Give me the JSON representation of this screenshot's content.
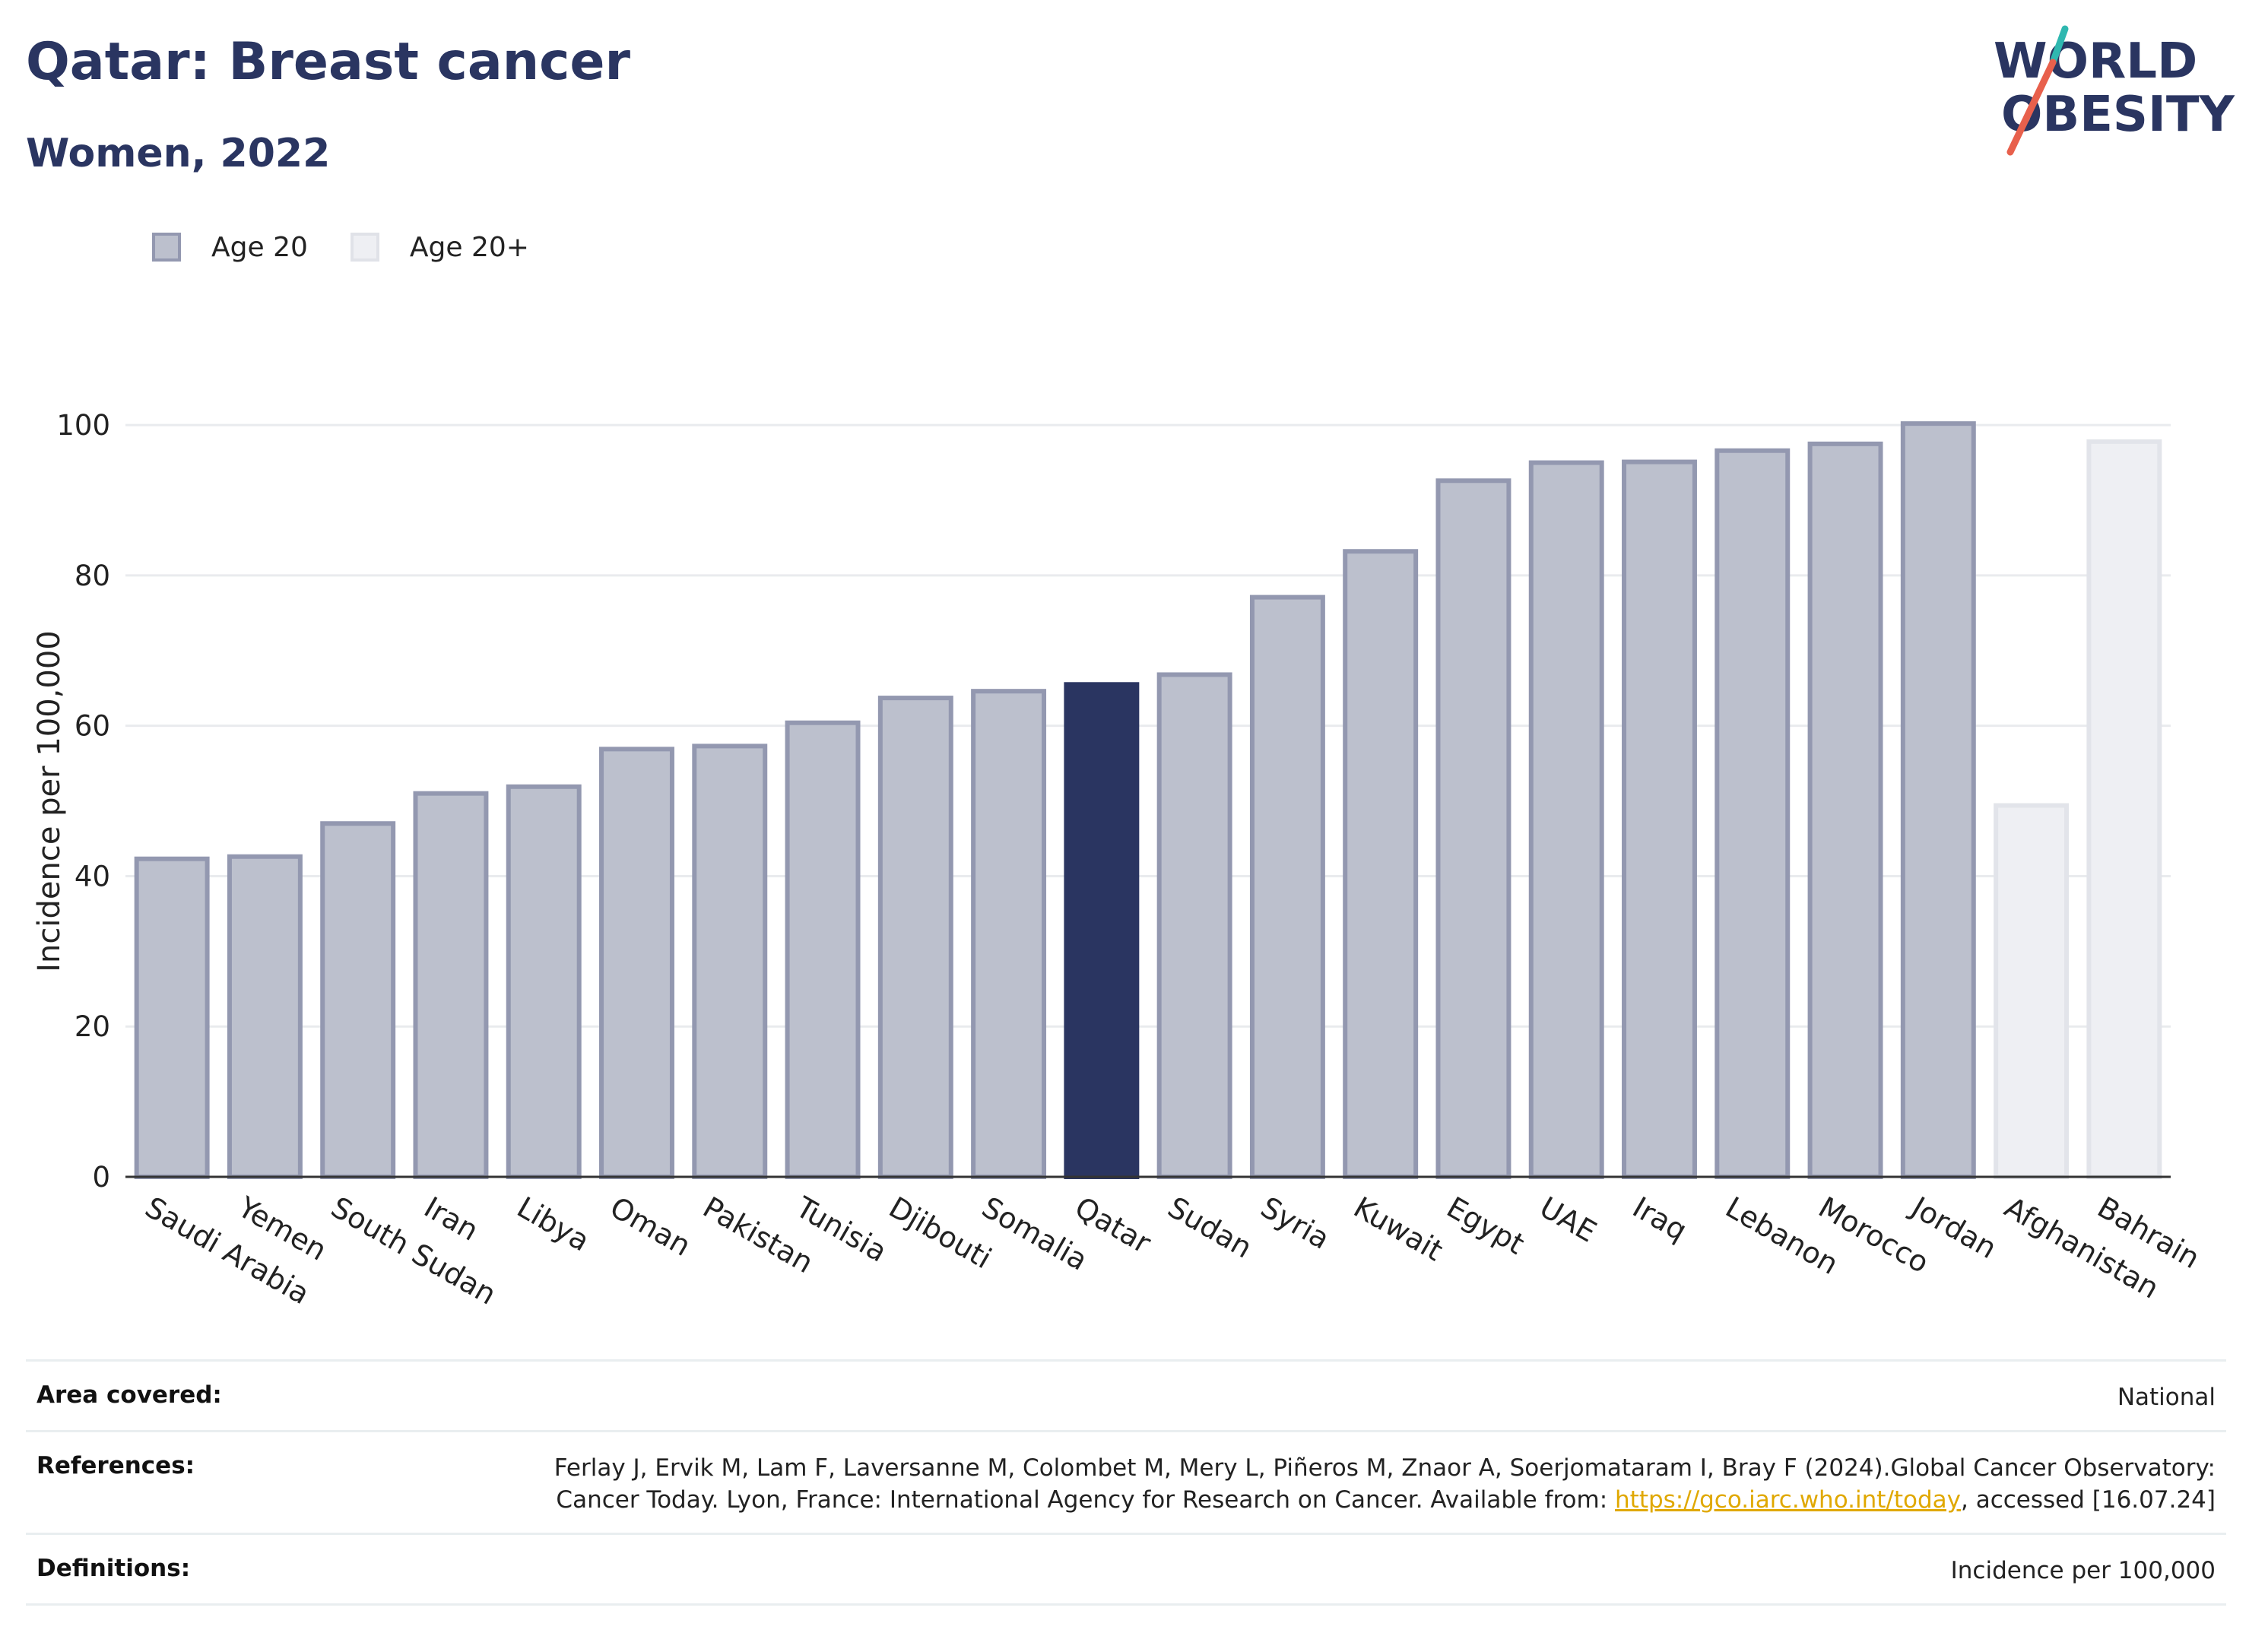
{
  "title": "Qatar: Breast cancer",
  "subtitle": "Women, 2022",
  "logo": {
    "line1": "WORLD",
    "line2": "OBESITY"
  },
  "legend": [
    {
      "label": "Age 20",
      "color": "#bcc0cd",
      "border": "#9398b0"
    },
    {
      "label": "Age 20+",
      "color": "#eeeff3",
      "border": "#e0e2e8"
    }
  ],
  "colors": {
    "highlight": "#2a3561",
    "age20": "#bcc0cd",
    "age20_border": "#9398b0",
    "age20plus": "#eeeff3",
    "age20plus_border": "#e2e4ea",
    "grid": "#e9ebee",
    "text": "#2a3561"
  },
  "chart_data": {
    "type": "bar",
    "title": "Qatar: Breast cancer",
    "ylabel": "Incidence per 100,000",
    "ylim": [
      0,
      108
    ],
    "yticks": [
      0,
      20,
      40,
      60,
      80,
      100
    ],
    "grid": true,
    "legend_placement": "top-left",
    "highlight": "Qatar",
    "categories": [
      "Saudi Arabia",
      "Yemen",
      "South Sudan",
      "Iran",
      "Libya",
      "Oman",
      "Pakistan",
      "Tunisia",
      "Djibouti",
      "Somalia",
      "Qatar",
      "Sudan",
      "Syria",
      "Kuwait",
      "Egypt",
      "UAE",
      "Iraq",
      "Lebanon",
      "Morocco",
      "Jordan",
      "Afghanistan",
      "Bahrain"
    ],
    "values": [
      42.3,
      42.6,
      47.0,
      51.0,
      51.9,
      56.9,
      57.3,
      60.4,
      63.7,
      64.6,
      65.5,
      66.8,
      77.1,
      83.2,
      92.6,
      95.0,
      95.1,
      96.6,
      97.5,
      100.2,
      49.4,
      97.8
    ],
    "groups": [
      "Age 20",
      "Age 20",
      "Age 20",
      "Age 20",
      "Age 20",
      "Age 20",
      "Age 20",
      "Age 20",
      "Age 20",
      "Age 20",
      "Age 20",
      "Age 20",
      "Age 20",
      "Age 20",
      "Age 20",
      "Age 20",
      "Age 20",
      "Age 20",
      "Age 20",
      "Age 20",
      "Age 20+",
      "Age 20+"
    ]
  },
  "meta": {
    "area_label": "Area covered:",
    "area_value": "National",
    "ref_label": "References:",
    "ref_text": "Ferlay J, Ervik M, Lam F, Laversanne M, Colombet M, Mery L, Piñeros M, Znaor A, Soerjomataram I, Bray F (2024).Global Cancer Observatory: Cancer Today. Lyon, France: International Agency for Research on Cancer. Available from: ",
    "ref_link": "https://gco.iarc.who.int/today",
    "ref_tail": ", accessed [16.07.24]",
    "def_label": "Definitions:",
    "def_value": "Incidence per 100,000"
  }
}
